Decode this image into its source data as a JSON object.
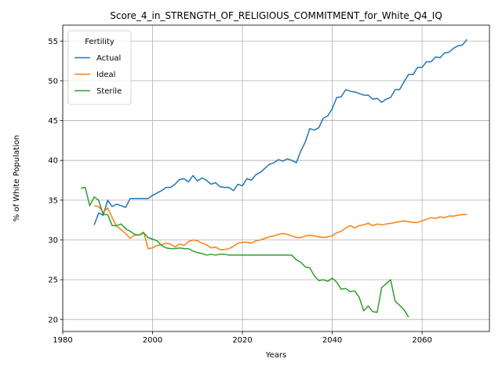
{
  "chart_data": {
    "type": "line",
    "title": "Score_4_in_STRENGTH_OF_RELIGIOUS_COMMITMENT_for_White_Q4_IQ",
    "xlabel": "Years",
    "ylabel": "% of White Population",
    "xlim": [
      1980,
      2075
    ],
    "ylim": [
      18.5,
      57
    ],
    "xticks": [
      1980,
      2000,
      2020,
      2040,
      2060
    ],
    "yticks": [
      20,
      25,
      30,
      35,
      40,
      45,
      50,
      55
    ],
    "grid": true,
    "legend": {
      "title": "Fertility",
      "placement": "top-left"
    },
    "series": [
      {
        "name": "Actual",
        "color": "#1f77b4",
        "x": [
          1987,
          1988,
          1989,
          1990,
          1991,
          1992,
          1993,
          1994,
          1995,
          1996,
          1997,
          1998,
          1999,
          2000,
          2001,
          2002,
          2003,
          2004,
          2005,
          2006,
          2007,
          2008,
          2009,
          2010,
          2011,
          2012,
          2013,
          2014,
          2015,
          2016,
          2017,
          2018,
          2019,
          2020,
          2021,
          2022,
          2023,
          2024,
          2025,
          2026,
          2027,
          2028,
          2029,
          2030,
          2031,
          2032,
          2033,
          2034,
          2035,
          2036,
          2037,
          2038,
          2039,
          2040,
          2041,
          2042,
          2043,
          2044,
          2045,
          2046,
          2047,
          2048,
          2049,
          2050,
          2051,
          2052,
          2053,
          2054,
          2055,
          2056,
          2057,
          2058,
          2059,
          2060,
          2061,
          2062,
          2063,
          2064,
          2065,
          2066,
          2067,
          2068,
          2069,
          2070
        ],
        "y": [
          31.9,
          33.4,
          33.1,
          35.0,
          34.2,
          34.5,
          34.3,
          34.1,
          35.2,
          35.2,
          35.2,
          35.2,
          35.2,
          35.6,
          35.9,
          36.2,
          36.6,
          36.6,
          37.0,
          37.6,
          37.7,
          37.3,
          38.1,
          37.4,
          37.8,
          37.5,
          37.0,
          37.2,
          36.7,
          36.6,
          36.6,
          36.2,
          37.0,
          36.8,
          37.7,
          37.5,
          38.2,
          38.5,
          39.0,
          39.5,
          39.7,
          40.1,
          39.9,
          40.2,
          40.0,
          39.7,
          41.2,
          42.3,
          44.0,
          43.8,
          44.1,
          45.3,
          45.6,
          46.5,
          47.9,
          48.0,
          48.9,
          48.7,
          48.6,
          48.4,
          48.2,
          48.2,
          47.7,
          47.8,
          47.3,
          47.7,
          47.9,
          48.9,
          48.9,
          49.9,
          50.8,
          50.8,
          51.7,
          51.7,
          52.4,
          52.4,
          53.0,
          52.9,
          53.5,
          53.6,
          54.1,
          54.4,
          54.5,
          55.2
        ]
      },
      {
        "name": "Ideal",
        "color": "#ff7f0e",
        "x": [
          1987,
          1988,
          1989,
          1990,
          1991,
          1992,
          1993,
          1994,
          1995,
          1996,
          1997,
          1998,
          1999,
          2000,
          2001,
          2002,
          2003,
          2004,
          2005,
          2006,
          2007,
          2008,
          2009,
          2010,
          2011,
          2012,
          2013,
          2014,
          2015,
          2016,
          2017,
          2018,
          2019,
          2020,
          2021,
          2022,
          2023,
          2024,
          2025,
          2026,
          2027,
          2028,
          2029,
          2030,
          2031,
          2032,
          2033,
          2034,
          2035,
          2036,
          2037,
          2038,
          2039,
          2040,
          2041,
          2042,
          2043,
          2044,
          2045,
          2046,
          2047,
          2048,
          2049,
          2050,
          2051,
          2052,
          2053,
          2054,
          2055,
          2056,
          2057,
          2058,
          2059,
          2060,
          2061,
          2062,
          2063,
          2064,
          2065,
          2066,
          2067,
          2068,
          2069,
          2070
        ],
        "y": [
          34.3,
          34.2,
          33.5,
          34.0,
          32.8,
          31.7,
          31.3,
          30.8,
          30.2,
          30.6,
          30.6,
          31.0,
          28.9,
          29.0,
          29.3,
          29.4,
          29.6,
          29.5,
          29.1,
          29.5,
          29.3,
          29.8,
          30.0,
          29.9,
          29.6,
          29.4,
          29.0,
          29.1,
          28.8,
          28.8,
          28.9,
          29.2,
          29.6,
          29.7,
          29.7,
          29.6,
          29.9,
          30.0,
          30.2,
          30.4,
          30.5,
          30.7,
          30.8,
          30.7,
          30.5,
          30.3,
          30.3,
          30.5,
          30.6,
          30.5,
          30.4,
          30.3,
          30.4,
          30.5,
          30.9,
          31.1,
          31.5,
          31.8,
          31.5,
          31.8,
          31.9,
          32.1,
          31.8,
          32.0,
          31.9,
          32.0,
          32.1,
          32.2,
          32.3,
          32.4,
          32.3,
          32.2,
          32.2,
          32.4,
          32.6,
          32.8,
          32.7,
          32.9,
          32.8,
          33.0,
          33.0,
          33.1,
          33.2,
          33.2
        ]
      },
      {
        "name": "Sterile",
        "color": "#2ca02c",
        "x": [
          1984,
          1985,
          1986,
          1987,
          1988,
          1989,
          1990,
          1991,
          1992,
          1993,
          1994,
          1995,
          1996,
          1997,
          1998,
          1999,
          2000,
          2001,
          2002,
          2003,
          2004,
          2005,
          2006,
          2007,
          2008,
          2009,
          2010,
          2011,
          2012,
          2013,
          2014,
          2015,
          2016,
          2017,
          2018,
          2019,
          2020,
          2021,
          2022,
          2023,
          2024,
          2025,
          2026,
          2027,
          2028,
          2029,
          2030,
          2031,
          2032,
          2033,
          2034,
          2035,
          2036,
          2037,
          2038,
          2039,
          2040,
          2041,
          2042,
          2043,
          2044,
          2045,
          2046,
          2047,
          2048,
          2049,
          2050,
          2051,
          2052,
          2053,
          2054,
          2055,
          2056,
          2057
        ],
        "y": [
          36.5,
          36.6,
          34.3,
          35.4,
          35.0,
          33.2,
          33.2,
          31.8,
          31.8,
          32.0,
          31.4,
          31.1,
          30.7,
          30.6,
          30.9,
          30.3,
          30.1,
          29.9,
          29.3,
          29.0,
          28.9,
          28.9,
          29.0,
          28.9,
          28.9,
          28.6,
          28.4,
          28.3,
          28.1,
          28.2,
          28.1,
          28.2,
          28.2,
          28.1,
          28.1,
          28.1,
          28.1,
          28.1,
          28.1,
          28.1,
          28.1,
          28.1,
          28.1,
          28.1,
          28.1,
          28.1,
          28.1,
          28.1,
          27.5,
          27.2,
          26.6,
          26.5,
          25.5,
          24.9,
          25.0,
          24.8,
          25.2,
          24.7,
          23.8,
          23.9,
          23.5,
          23.6,
          22.8,
          21.1,
          21.7,
          21.0,
          20.9,
          24.0,
          24.5,
          25.0,
          22.3,
          21.8,
          21.2,
          20.3
        ]
      }
    ]
  }
}
